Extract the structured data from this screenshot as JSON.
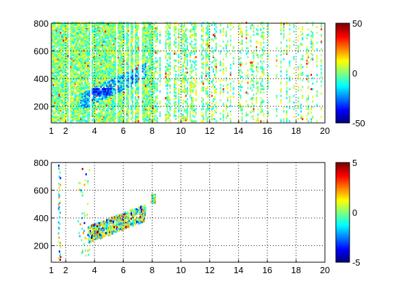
{
  "chart_data": [
    {
      "type": "heatmap",
      "title": "",
      "xlabel": "",
      "ylabel": "",
      "xlim": [
        1,
        20
      ],
      "ylim": [
        80,
        800
      ],
      "x_ticks": [
        1,
        2,
        4,
        6,
        8,
        10,
        12,
        14,
        16,
        18,
        20
      ],
      "y_ticks": [
        200,
        400,
        600,
        800
      ],
      "grid": true,
      "colorbar": {
        "colormap": "jet",
        "clim": [
          -50,
          50
        ],
        "ticks": [
          -50,
          0,
          50
        ]
      },
      "pattern": "dense vertical streaks across x=1-8 with sparser streaks to x=20; a diagonal band of values rising from ~(3.5,250) to ~(7,420), most negative near (4.5,300)"
    },
    {
      "type": "heatmap",
      "title": "",
      "xlabel": "",
      "ylabel": "",
      "xlim": [
        1,
        20
      ],
      "ylim": [
        80,
        800
      ],
      "x_ticks": [
        1,
        2,
        4,
        6,
        8,
        10,
        12,
        14,
        16,
        18,
        20
      ],
      "y_ticks": [
        200,
        400,
        600,
        800
      ],
      "grid": true,
      "colorbar": {
        "colormap": "jet",
        "clim": [
          -5,
          5
        ],
        "ticks": [
          -5,
          0,
          5
        ]
      },
      "pattern": "sparse points: isolated streaks near x=1.5-3, a cluster along the diagonal from ~(3.5,270) to ~(7.5,420), small group near (8,530)"
    }
  ]
}
